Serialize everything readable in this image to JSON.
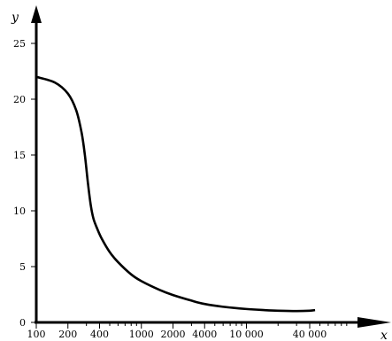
{
  "chart_data": {
    "type": "line",
    "title": "",
    "xlabel": "x",
    "ylabel": "y",
    "x_scale": "log",
    "xlim": [
      100,
      100000
    ],
    "ylim": [
      0,
      25
    ],
    "x_ticks": [
      100,
      200,
      400,
      1000,
      2000,
      4000,
      10000,
      40000
    ],
    "x_tick_labels": [
      "100",
      "200",
      "400",
      "1000",
      "2000",
      "4000",
      "10 000",
      "40 000"
    ],
    "x_minor_ticks": [
      300,
      500,
      600,
      700,
      800,
      900,
      3000,
      5000,
      6000,
      7000,
      8000,
      9000,
      20000,
      30000,
      50000,
      60000,
      70000,
      80000,
      90000
    ],
    "y_ticks": [
      0,
      5,
      10,
      15,
      20,
      25
    ],
    "y_tick_labels": [
      "0",
      "5",
      "10",
      "15",
      "20",
      "25"
    ],
    "grid": false,
    "series": [
      {
        "x": [
          100,
          150,
          200,
          240,
          270,
          290,
          310,
          330,
          350,
          380,
          420,
          500,
          600,
          800,
          1000,
          1500,
          2000,
          3000,
          4000,
          6000,
          10000,
          15000,
          20000,
          30000,
          40000,
          45000
        ],
        "y": [
          22,
          21.5,
          20.5,
          19,
          17,
          15,
          12.5,
          10.5,
          9.3,
          8.4,
          7.5,
          6.3,
          5.4,
          4.3,
          3.7,
          2.9,
          2.45,
          1.95,
          1.65,
          1.4,
          1.2,
          1.1,
          1.05,
          1.02,
          1.05,
          1.1
        ]
      }
    ]
  }
}
